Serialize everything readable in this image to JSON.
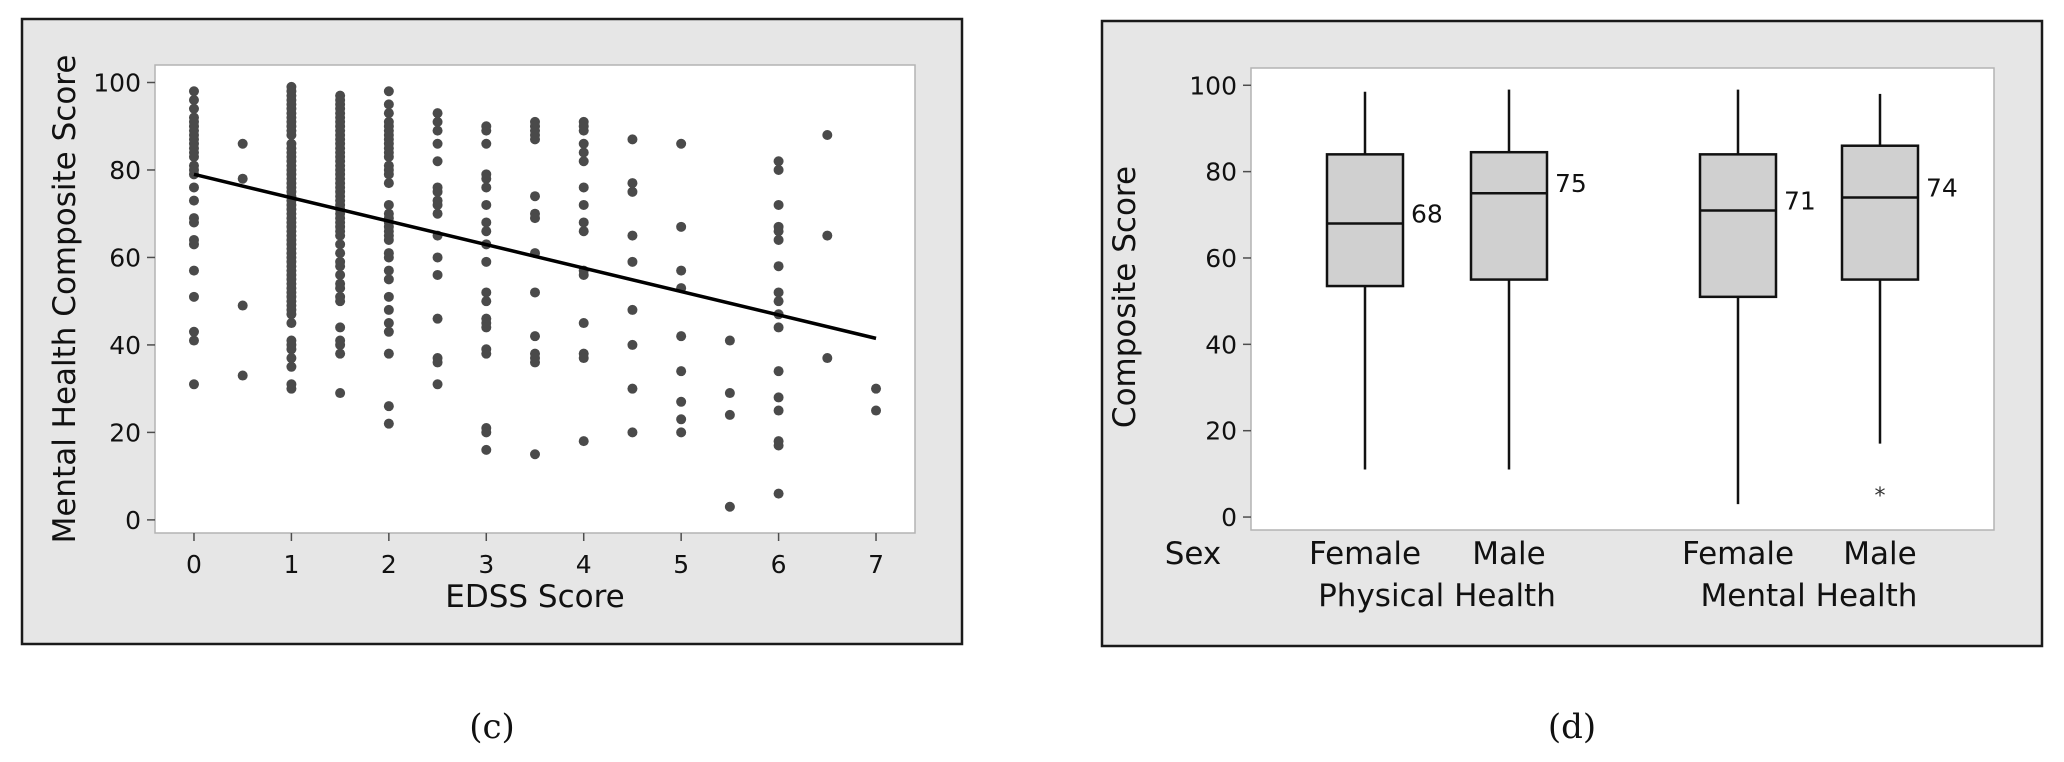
{
  "chart_data": [
    {
      "type": "scatter",
      "panel_label": "(c)",
      "xlabel": "EDSS Score",
      "ylabel": "Mental Health Composite Score",
      "xlim": [
        -0.4,
        7.4
      ],
      "ylim": [
        -3,
        104
      ],
      "xticks": [
        0,
        1,
        2,
        3,
        4,
        5,
        6,
        7
      ],
      "yticks": [
        0,
        20,
        40,
        60,
        80,
        100
      ],
      "trendline": {
        "x": [
          0,
          7
        ],
        "y": [
          79,
          41.5
        ]
      },
      "points": [
        [
          0,
          98
        ],
        [
          0,
          96
        ],
        [
          0,
          94
        ],
        [
          0,
          92
        ],
        [
          0,
          91
        ],
        [
          0,
          90
        ],
        [
          0,
          89
        ],
        [
          0,
          88
        ],
        [
          0,
          87
        ],
        [
          0,
          86
        ],
        [
          0,
          85
        ],
        [
          0,
          84
        ],
        [
          0,
          83
        ],
        [
          0,
          81
        ],
        [
          0,
          80
        ],
        [
          0,
          79
        ],
        [
          0,
          76
        ],
        [
          0,
          73
        ],
        [
          0,
          69
        ],
        [
          0,
          68
        ],
        [
          0,
          64
        ],
        [
          0,
          63
        ],
        [
          0,
          57
        ],
        [
          0,
          51
        ],
        [
          0,
          43
        ],
        [
          0,
          41
        ],
        [
          0,
          31
        ],
        [
          0.5,
          86
        ],
        [
          0.5,
          78
        ],
        [
          0.5,
          49
        ],
        [
          0.5,
          33
        ],
        [
          1,
          99
        ],
        [
          1,
          98
        ],
        [
          1,
          97
        ],
        [
          1,
          96
        ],
        [
          1,
          95
        ],
        [
          1,
          94
        ],
        [
          1,
          93
        ],
        [
          1,
          92
        ],
        [
          1,
          91
        ],
        [
          1,
          90
        ],
        [
          1,
          89
        ],
        [
          1,
          88
        ],
        [
          1,
          86
        ],
        [
          1,
          85
        ],
        [
          1,
          84
        ],
        [
          1,
          83
        ],
        [
          1,
          82
        ],
        [
          1,
          81
        ],
        [
          1,
          80
        ],
        [
          1,
          79
        ],
        [
          1,
          78
        ],
        [
          1,
          77
        ],
        [
          1,
          76
        ],
        [
          1,
          75
        ],
        [
          1,
          74
        ],
        [
          1,
          73
        ],
        [
          1,
          72
        ],
        [
          1,
          71
        ],
        [
          1,
          70
        ],
        [
          1,
          69
        ],
        [
          1,
          68
        ],
        [
          1,
          67
        ],
        [
          1,
          66
        ],
        [
          1,
          65
        ],
        [
          1,
          64
        ],
        [
          1,
          63
        ],
        [
          1,
          62
        ],
        [
          1,
          61
        ],
        [
          1,
          60
        ],
        [
          1,
          59
        ],
        [
          1,
          58
        ],
        [
          1,
          57
        ],
        [
          1,
          56
        ],
        [
          1,
          55
        ],
        [
          1,
          54
        ],
        [
          1,
          53
        ],
        [
          1,
          52
        ],
        [
          1,
          51
        ],
        [
          1,
          50
        ],
        [
          1,
          49
        ],
        [
          1,
          48
        ],
        [
          1,
          47
        ],
        [
          1,
          45
        ],
        [
          1,
          41
        ],
        [
          1,
          40
        ],
        [
          1,
          39
        ],
        [
          1,
          37
        ],
        [
          1,
          35
        ],
        [
          1,
          31
        ],
        [
          1,
          30
        ],
        [
          1.5,
          97
        ],
        [
          1.5,
          96
        ],
        [
          1.5,
          95
        ],
        [
          1.5,
          94
        ],
        [
          1.5,
          93
        ],
        [
          1.5,
          92
        ],
        [
          1.5,
          91
        ],
        [
          1.5,
          90
        ],
        [
          1.5,
          89
        ],
        [
          1.5,
          88
        ],
        [
          1.5,
          87
        ],
        [
          1.5,
          86
        ],
        [
          1.5,
          85
        ],
        [
          1.5,
          84
        ],
        [
          1.5,
          83
        ],
        [
          1.5,
          82
        ],
        [
          1.5,
          81
        ],
        [
          1.5,
          80
        ],
        [
          1.5,
          79
        ],
        [
          1.5,
          78
        ],
        [
          1.5,
          77
        ],
        [
          1.5,
          76
        ],
        [
          1.5,
          75
        ],
        [
          1.5,
          74
        ],
        [
          1.5,
          73
        ],
        [
          1.5,
          72
        ],
        [
          1.5,
          71
        ],
        [
          1.5,
          70
        ],
        [
          1.5,
          69
        ],
        [
          1.5,
          68
        ],
        [
          1.5,
          67
        ],
        [
          1.5,
          66
        ],
        [
          1.5,
          65
        ],
        [
          1.5,
          63
        ],
        [
          1.5,
          61
        ],
        [
          1.5,
          59
        ],
        [
          1.5,
          58
        ],
        [
          1.5,
          56
        ],
        [
          1.5,
          54
        ],
        [
          1.5,
          53
        ],
        [
          1.5,
          51
        ],
        [
          1.5,
          50
        ],
        [
          1.5,
          44
        ],
        [
          1.5,
          41
        ],
        [
          1.5,
          40
        ],
        [
          1.5,
          38
        ],
        [
          1.5,
          29
        ],
        [
          2,
          98
        ],
        [
          2,
          95
        ],
        [
          2,
          93
        ],
        [
          2,
          91
        ],
        [
          2,
          90
        ],
        [
          2,
          89
        ],
        [
          2,
          88
        ],
        [
          2,
          87
        ],
        [
          2,
          86
        ],
        [
          2,
          85
        ],
        [
          2,
          84
        ],
        [
          2,
          83
        ],
        [
          2,
          81
        ],
        [
          2,
          80
        ],
        [
          2,
          79
        ],
        [
          2,
          77
        ],
        [
          2,
          72
        ],
        [
          2,
          70
        ],
        [
          2,
          69
        ],
        [
          2,
          68
        ],
        [
          2,
          67
        ],
        [
          2,
          66
        ],
        [
          2,
          65
        ],
        [
          2,
          64
        ],
        [
          2,
          61
        ],
        [
          2,
          60
        ],
        [
          2,
          57
        ],
        [
          2,
          55
        ],
        [
          2,
          51
        ],
        [
          2,
          48
        ],
        [
          2,
          45
        ],
        [
          2,
          43
        ],
        [
          2,
          38
        ],
        [
          2,
          26
        ],
        [
          2,
          22
        ],
        [
          2.5,
          93
        ],
        [
          2.5,
          91
        ],
        [
          2.5,
          89
        ],
        [
          2.5,
          86
        ],
        [
          2.5,
          82
        ],
        [
          2.5,
          76
        ],
        [
          2.5,
          75
        ],
        [
          2.5,
          73
        ],
        [
          2.5,
          72
        ],
        [
          2.5,
          70
        ],
        [
          2.5,
          65
        ],
        [
          2.5,
          60
        ],
        [
          2.5,
          56
        ],
        [
          2.5,
          46
        ],
        [
          2.5,
          37
        ],
        [
          2.5,
          36
        ],
        [
          2.5,
          31
        ],
        [
          3,
          90
        ],
        [
          3,
          89
        ],
        [
          3,
          86
        ],
        [
          3,
          79
        ],
        [
          3,
          78
        ],
        [
          3,
          76
        ],
        [
          3,
          72
        ],
        [
          3,
          68
        ],
        [
          3,
          66
        ],
        [
          3,
          63
        ],
        [
          3,
          59
        ],
        [
          3,
          52
        ],
        [
          3,
          50
        ],
        [
          3,
          46
        ],
        [
          3,
          45
        ],
        [
          3,
          44
        ],
        [
          3,
          39
        ],
        [
          3,
          38
        ],
        [
          3,
          21
        ],
        [
          3,
          20
        ],
        [
          3,
          16
        ],
        [
          3.5,
          91
        ],
        [
          3.5,
          90
        ],
        [
          3.5,
          89
        ],
        [
          3.5,
          88
        ],
        [
          3.5,
          87
        ],
        [
          3.5,
          74
        ],
        [
          3.5,
          70
        ],
        [
          3.5,
          69
        ],
        [
          3.5,
          61
        ],
        [
          3.5,
          52
        ],
        [
          3.5,
          42
        ],
        [
          3.5,
          38
        ],
        [
          3.5,
          37
        ],
        [
          3.5,
          36
        ],
        [
          3.5,
          15
        ],
        [
          4,
          91
        ],
        [
          4,
          90
        ],
        [
          4,
          89
        ],
        [
          4,
          86
        ],
        [
          4,
          84
        ],
        [
          4,
          82
        ],
        [
          4,
          76
        ],
        [
          4,
          72
        ],
        [
          4,
          68
        ],
        [
          4,
          66
        ],
        [
          4,
          57
        ],
        [
          4,
          56
        ],
        [
          4,
          45
        ],
        [
          4,
          38
        ],
        [
          4,
          37
        ],
        [
          4,
          18
        ],
        [
          4.5,
          87
        ],
        [
          4.5,
          77
        ],
        [
          4.5,
          75
        ],
        [
          4.5,
          65
        ],
        [
          4.5,
          59
        ],
        [
          4.5,
          48
        ],
        [
          4.5,
          40
        ],
        [
          4.5,
          30
        ],
        [
          4.5,
          20
        ],
        [
          5,
          86
        ],
        [
          5,
          67
        ],
        [
          5,
          57
        ],
        [
          5,
          53
        ],
        [
          5,
          42
        ],
        [
          5,
          34
        ],
        [
          5,
          27
        ],
        [
          5,
          23
        ],
        [
          5,
          20
        ],
        [
          5.5,
          41
        ],
        [
          5.5,
          29
        ],
        [
          5.5,
          24
        ],
        [
          5.5,
          3
        ],
        [
          6,
          82
        ],
        [
          6,
          80
        ],
        [
          6,
          72
        ],
        [
          6,
          67
        ],
        [
          6,
          66
        ],
        [
          6,
          64
        ],
        [
          6,
          58
        ],
        [
          6,
          52
        ],
        [
          6,
          50
        ],
        [
          6,
          47
        ],
        [
          6,
          44
        ],
        [
          6,
          34
        ],
        [
          6,
          28
        ],
        [
          6,
          25
        ],
        [
          6,
          18
        ],
        [
          6,
          17
        ],
        [
          6,
          6
        ],
        [
          6.5,
          88
        ],
        [
          6.5,
          65
        ],
        [
          6.5,
          37
        ],
        [
          7,
          30
        ],
        [
          7,
          25
        ]
      ]
    },
    {
      "type": "box",
      "panel_label": "(d)",
      "ylabel": "Composite Score",
      "ylim": [
        -3,
        104
      ],
      "yticks": [
        0,
        20,
        40,
        60,
        80,
        100
      ],
      "factor_label": "Sex",
      "groups": [
        "Physical Health",
        "Mental Health"
      ],
      "boxes": [
        {
          "group": "Physical Health",
          "sex": "Female",
          "min": 11,
          "q1": 53.5,
          "median": 68,
          "q3": 84,
          "max": 98.5,
          "median_label": "68",
          "outliers": []
        },
        {
          "group": "Physical Health",
          "sex": "Male",
          "min": 11,
          "q1": 55,
          "median": 75,
          "q3": 84.5,
          "max": 99,
          "median_label": "75",
          "outliers": []
        },
        {
          "group": "Mental Health",
          "sex": "Female",
          "min": 3,
          "q1": 51,
          "median": 71,
          "q3": 84,
          "max": 99,
          "median_label": "71",
          "outliers": []
        },
        {
          "group": "Mental Health",
          "sex": "Male",
          "min": 17,
          "q1": 55,
          "median": 74,
          "q3": 86,
          "max": 98,
          "median_label": "74",
          "outliers": [
            6
          ]
        }
      ],
      "outlier_marker": "*"
    }
  ]
}
